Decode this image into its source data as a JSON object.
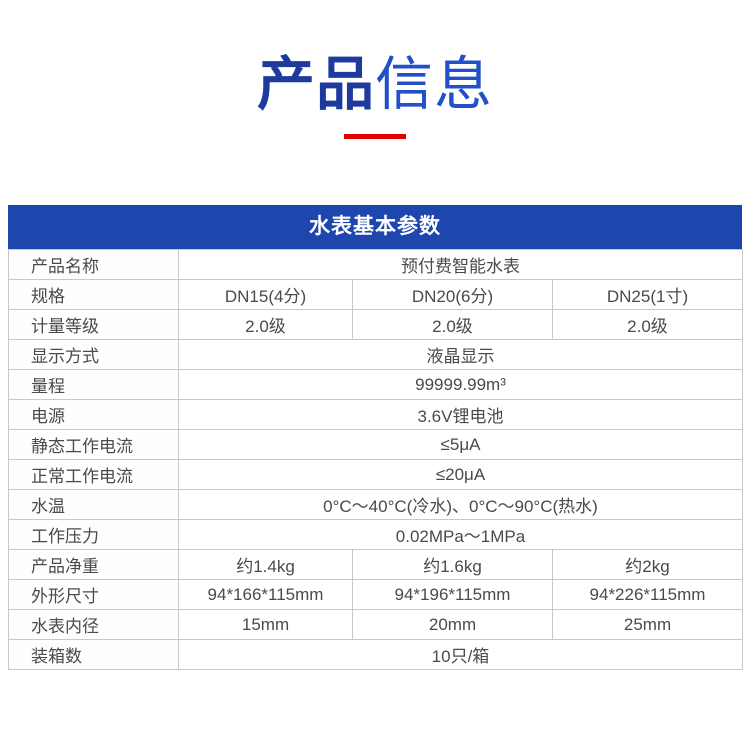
{
  "title": {
    "part1": "产品",
    "part2": "信息"
  },
  "colors": {
    "title_dark_blue": "#1e3a9c",
    "title_light_blue": "#2150c8",
    "underline_red": "#e00000",
    "table_header_blue": "#1d46ae",
    "table_border_gray": "#c8c8c8",
    "body_text_gray": "#4a4a4a"
  },
  "table": {
    "header": "水表基本参数",
    "rows": [
      {
        "label": "产品名称",
        "values": [
          "预付费智能水表"
        ]
      },
      {
        "label": "规格",
        "values": [
          "DN15(4分)",
          "DN20(6分)",
          "DN25(1寸)"
        ]
      },
      {
        "label": "计量等级",
        "values": [
          "2.0级",
          "2.0级",
          "2.0级"
        ]
      },
      {
        "label": "显示方式",
        "values": [
          "液晶显示"
        ]
      },
      {
        "label": "量程",
        "values": [
          "99999.99m³"
        ]
      },
      {
        "label": "电源",
        "values": [
          "3.6V锂电池"
        ]
      },
      {
        "label": "静态工作电流",
        "values": [
          "≤5μA"
        ]
      },
      {
        "label": "正常工作电流",
        "values": [
          "≤20μA"
        ]
      },
      {
        "label": "水温",
        "values": [
          "0°C～40°C(冷水)、0°C～90°C(热水)"
        ]
      },
      {
        "label": "工作压力",
        "values": [
          "0.02MPa～1MPa"
        ]
      },
      {
        "label": "产品净重",
        "values": [
          "约1.4kg",
          "约1.6kg",
          "约2kg"
        ]
      },
      {
        "label": "外形尺寸",
        "values": [
          "94*166*115mm",
          "94*196*115mm",
          "94*226*115mm"
        ]
      },
      {
        "label": "水表内径",
        "values": [
          "15mm",
          "20mm",
          "25mm"
        ]
      },
      {
        "label": "装箱数",
        "values": [
          "10只/箱"
        ]
      }
    ]
  }
}
